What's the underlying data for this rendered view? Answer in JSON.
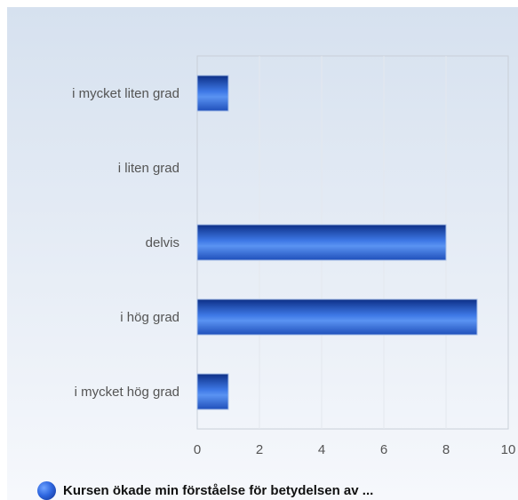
{
  "colors": {
    "bar_top": "#0d2f86",
    "bar_mid": "#4a86ee",
    "bar_bottom": "#1f4fba",
    "background_top": "#d6e1ef",
    "background_bottom": "#f6f8fc",
    "plot_border": "#c9cfd8",
    "grid": "#e4e8ee"
  },
  "legend": {
    "label": "Kursen ökade min förståelse för betydelsen av ...",
    "icon": "circle-gradient-swatch"
  },
  "chart_data": {
    "type": "bar",
    "orientation": "horizontal",
    "categories": [
      "i mycket liten grad",
      "i liten grad",
      "delvis",
      "i hög grad",
      "i mycket hög grad"
    ],
    "series": [
      {
        "name": "Kursen ökade min förståelse för betydelsen av ...",
        "values": [
          1,
          0,
          8,
          9,
          1
        ]
      }
    ],
    "xlim": [
      0,
      10
    ],
    "xticks": [
      0,
      2,
      4,
      6,
      8,
      10
    ],
    "grid": true,
    "legend_position": "bottom-left",
    "title": "",
    "xlabel": "",
    "ylabel": ""
  }
}
